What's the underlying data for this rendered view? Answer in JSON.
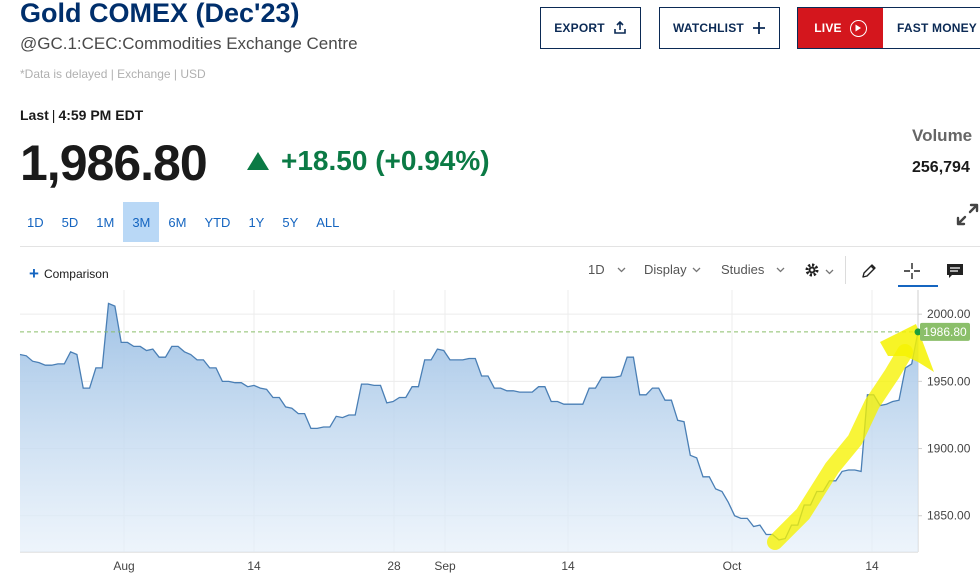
{
  "header": {
    "title": "Gold COMEX (Dec'23)",
    "subtitle": "@GC.1:CEC:Commodities Exchange Centre",
    "delay_note": "*Data is delayed | Exchange | USD",
    "export_label": "EXPORT",
    "watchlist_label": "WATCHLIST",
    "live_label": "LIVE",
    "fast_money_label": "FAST MONEY"
  },
  "quote": {
    "last_label": "Last",
    "last_time": "4:59 PM EDT",
    "price": "1,986.80",
    "change": "+18.50 (+0.94%)",
    "volume_label": "Volume",
    "volume": "256,794"
  },
  "ranges": [
    "1D",
    "5D",
    "1M",
    "3M",
    "6M",
    "YTD",
    "1Y",
    "5Y",
    "ALL"
  ],
  "active_range": "3M",
  "toolbar": {
    "comparison_label": "Comparison",
    "interval_label": "1D",
    "display_label": "Display",
    "studies_label": "Studies"
  },
  "colors": {
    "title": "#002f6c",
    "positive": "#0b7a45",
    "line": "#4a7fb5",
    "live_red": "#d4161d",
    "last_price_tag": "#8bbf6a",
    "highlight": "#f6f200"
  },
  "chart_data": {
    "type": "area",
    "current_price_label": "1986.80",
    "current_price": 1986.8,
    "ylim": [
      1823,
      2018
    ],
    "y_ticks": [
      2000,
      1950,
      1900,
      1850
    ],
    "y_tick_labels": [
      "2000.00",
      "1950.00",
      "1900.00",
      "1850.00"
    ],
    "x_tick_labels": [
      "Aug",
      "14",
      "28",
      "Sep",
      "14",
      "Oct",
      "14"
    ],
    "series": [
      {
        "values": [
          1970,
          1969,
          1965,
          1964,
          1962,
          1962,
          1963,
          1963,
          1972,
          1970,
          1945,
          1945,
          1960,
          1960,
          2008,
          2006,
          1979,
          1979,
          1976,
          1976,
          1973,
          1974,
          1968,
          1968,
          1976,
          1976,
          1972,
          1970,
          1966,
          1966,
          1960,
          1960,
          1950,
          1950,
          1949,
          1949,
          1946,
          1947,
          1945,
          1944,
          1938,
          1938,
          1931,
          1930,
          1926,
          1926,
          1915,
          1915,
          1916,
          1916,
          1924,
          1923,
          1925,
          1925,
          1948,
          1948,
          1947,
          1947,
          1934,
          1935,
          1938,
          1938,
          1946,
          1946,
          1966,
          1966,
          1974,
          1973,
          1966,
          1966,
          1966,
          1967,
          1967,
          1954,
          1954,
          1945,
          1945,
          1943,
          1943,
          1942,
          1942,
          1942,
          1946,
          1946,
          1935,
          1935,
          1933,
          1933,
          1933,
          1933,
          1945,
          1945,
          1953,
          1953,
          1953,
          1954,
          1968,
          1968,
          1940,
          1940,
          1945,
          1945,
          1936,
          1936,
          1921,
          1920,
          1895,
          1893,
          1879,
          1879,
          1870,
          1868,
          1860,
          1850,
          1848,
          1848,
          1842,
          1843,
          1836,
          1836,
          1832,
          1833,
          1843,
          1843,
          1858,
          1858,
          1868,
          1868,
          1876,
          1876,
          1883,
          1884,
          1884,
          1883,
          1940,
          1940,
          1932,
          1933,
          1935,
          1936,
          1960,
          1963,
          1986.8
        ]
      }
    ]
  }
}
